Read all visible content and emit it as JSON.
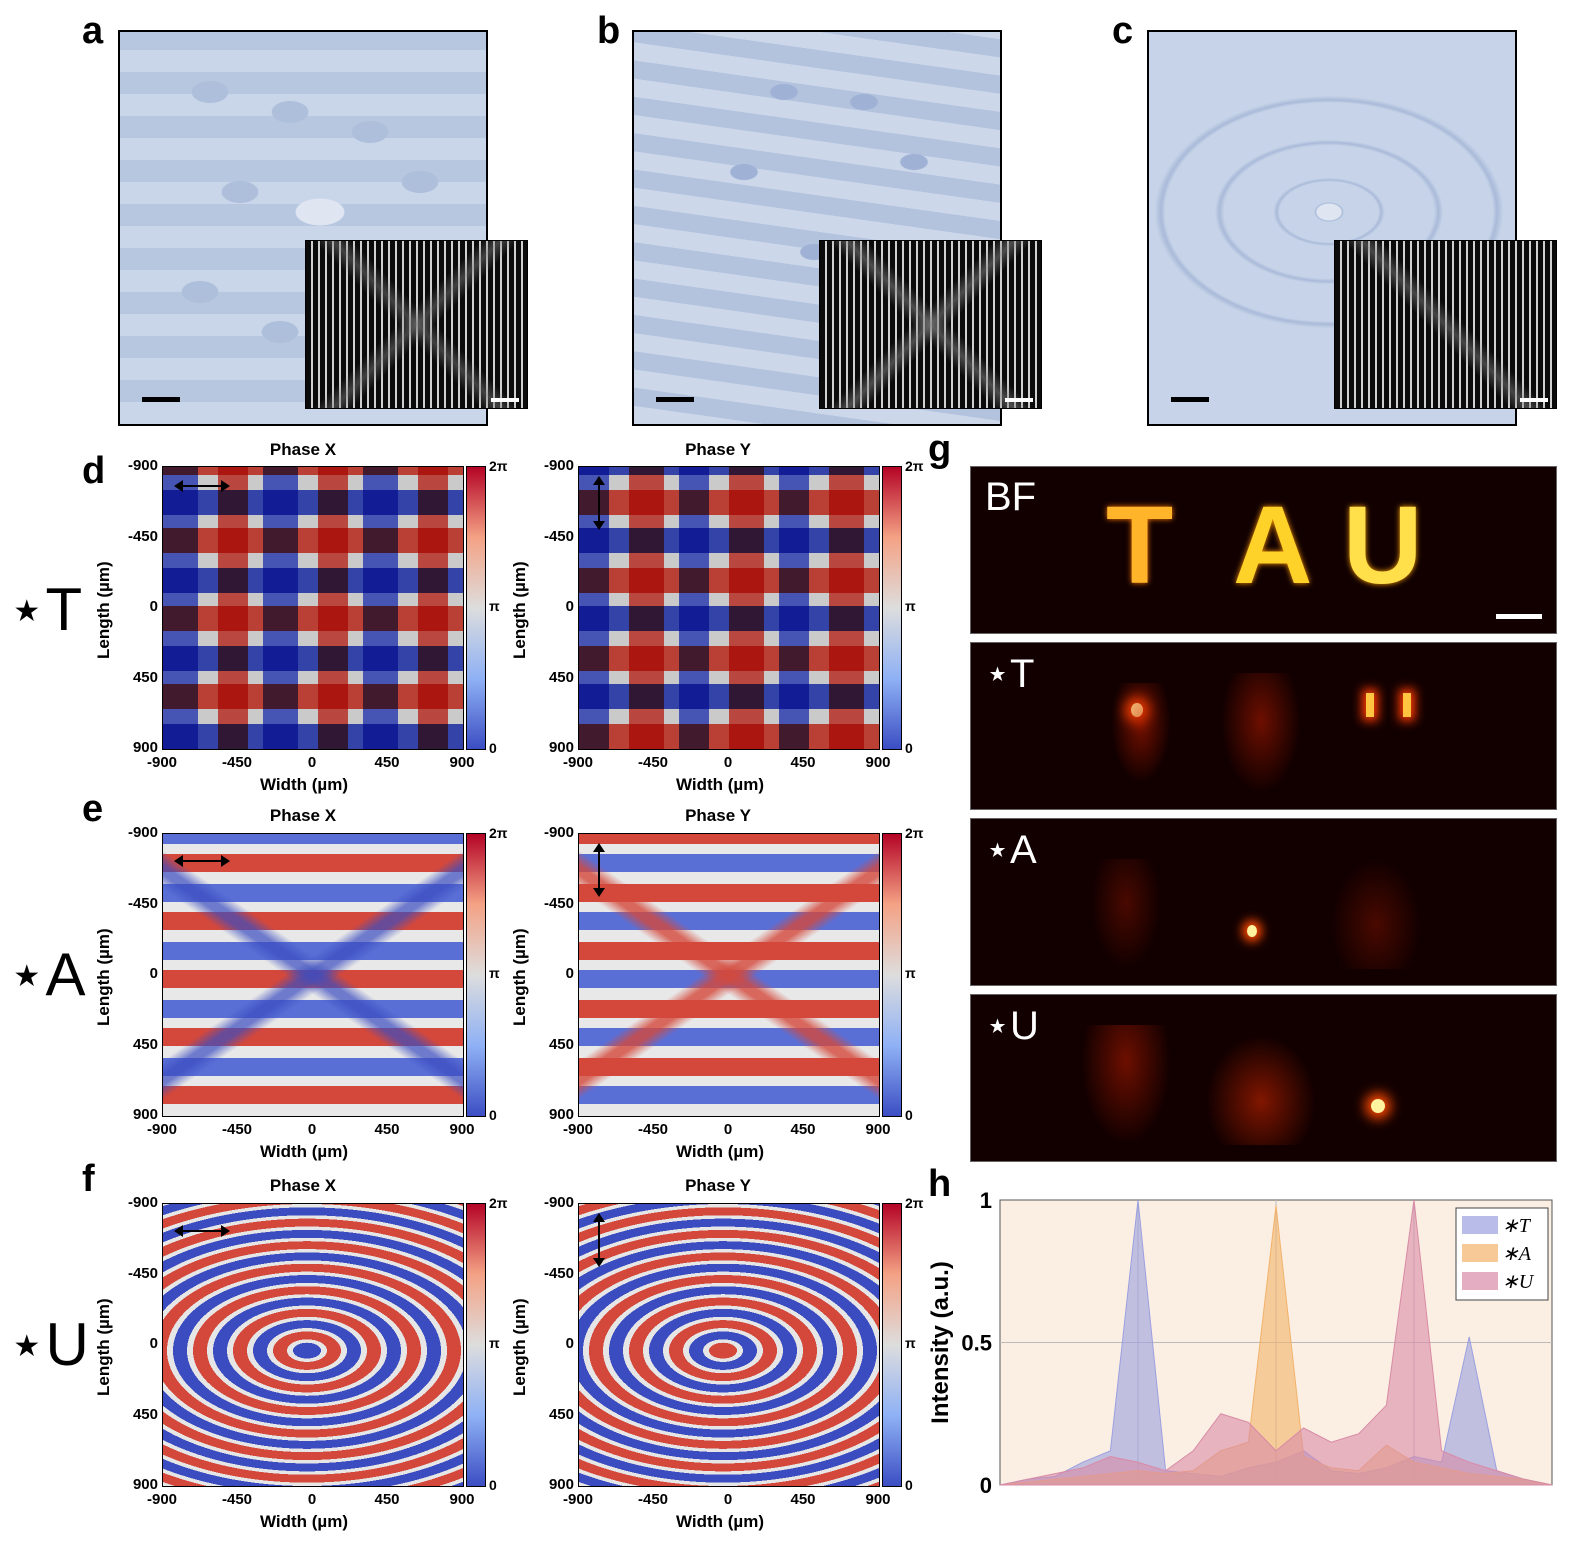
{
  "panel_letters": {
    "a": "a",
    "b": "b",
    "c": "c",
    "d": "d",
    "e": "e",
    "f": "f",
    "g": "g",
    "h": "h"
  },
  "phase_titles": {
    "x": "Phase X",
    "y": "Phase Y"
  },
  "axis": {
    "x_label": "Width (µm)",
    "y_label": "Length (µm)",
    "x_ticks": [
      "-900",
      "-450",
      "0",
      "450",
      "900"
    ],
    "y_ticks": [
      "-900",
      "-450",
      "0",
      "450",
      "900"
    ],
    "colorbar_ticks": [
      "2π",
      "π",
      "0"
    ]
  },
  "rows": [
    {
      "label": "⋆T"
    },
    {
      "label": "⋆A"
    },
    {
      "label": "⋆U"
    }
  ],
  "g_panels": {
    "bf": "BF",
    "t": "⋆T",
    "a": "⋆A",
    "u": "⋆U",
    "tau": [
      "T",
      "A",
      "U"
    ]
  },
  "chart_data": {
    "type": "area",
    "title": "",
    "xlabel": "",
    "ylabel": "Intensity (a.u.)",
    "ylim": [
      0,
      1
    ],
    "yticks": [
      "0",
      "0.5",
      "1"
    ],
    "grid": true,
    "legend_position": "top-right",
    "x": [
      0,
      1,
      2,
      3,
      4,
      5,
      6,
      7,
      8,
      9,
      10,
      11,
      12,
      13,
      14,
      15,
      16,
      17,
      18,
      19,
      20
    ],
    "series": [
      {
        "name": "∗T",
        "color": "#9b9fe0",
        "values": [
          0,
          0.02,
          0.03,
          0.08,
          0.12,
          1.0,
          0.05,
          0.04,
          0.03,
          0.06,
          0.08,
          0.12,
          0.05,
          0.04,
          0.06,
          0.1,
          0.08,
          0.52,
          0.05,
          0.02,
          0
        ]
      },
      {
        "name": "∗A",
        "color": "#f2b26a",
        "values": [
          0,
          0.01,
          0.02,
          0.03,
          0.04,
          0.05,
          0.04,
          0.05,
          0.12,
          0.15,
          0.98,
          0.1,
          0.06,
          0.05,
          0.14,
          0.08,
          0.06,
          0.04,
          0.03,
          0.02,
          0
        ]
      },
      {
        "name": "∗U",
        "color": "#d98aa6",
        "values": [
          0,
          0.02,
          0.04,
          0.06,
          0.1,
          0.08,
          0.05,
          0.12,
          0.25,
          0.22,
          0.12,
          0.2,
          0.15,
          0.18,
          0.28,
          1.0,
          0.12,
          0.08,
          0.05,
          0.02,
          0
        ]
      }
    ]
  }
}
